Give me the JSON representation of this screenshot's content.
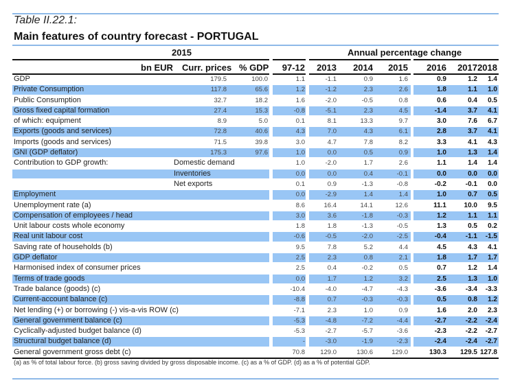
{
  "table_number": "Table II.22.1:",
  "title": "Main features of country forecast - PORTUGAL",
  "header": {
    "group_2015": "2015",
    "group_annual": "Annual percentage change",
    "bn_eur": "bn EUR",
    "curr_prices": "Curr. prices",
    "pct_gdp": "% GDP",
    "years": [
      "97-12",
      "2013",
      "2014",
      "2015",
      "2016",
      "2017",
      "2018"
    ]
  },
  "colors": {
    "band": "#99c6f5",
    "rule_blue": "#8db9e8"
  },
  "rows": [
    {
      "label": "GDP",
      "sub": "",
      "curr": "179.5",
      "pct": "100.0",
      "v": [
        "1.1",
        "-1.1",
        "0.9",
        "1.6",
        "0.9",
        "1.2",
        "1.4"
      ],
      "band": false
    },
    {
      "label": "Private Consumption",
      "sub": "",
      "curr": "117.8",
      "pct": "65.6",
      "v": [
        "1.2",
        "-1.2",
        "2.3",
        "2.6",
        "1.8",
        "1.1",
        "1.0"
      ],
      "band": true
    },
    {
      "label": "Public Consumption",
      "sub": "",
      "curr": "32.7",
      "pct": "18.2",
      "v": [
        "1.6",
        "-2.0",
        "-0.5",
        "0.8",
        "0.6",
        "0.4",
        "0.5"
      ],
      "band": false
    },
    {
      "label": "Gross fixed capital formation",
      "sub": "",
      "curr": "27.4",
      "pct": "15.3",
      "v": [
        "-0.8",
        "-5.1",
        "2.3",
        "4.5",
        "-1.4",
        "3.7",
        "4.1"
      ],
      "band": true
    },
    {
      "label": "of which: equipment",
      "sub": "",
      "curr": "8.9",
      "pct": "5.0",
      "v": [
        "0.1",
        "8.1",
        "13.3",
        "9.7",
        "3.0",
        "7.6",
        "6.7"
      ],
      "band": false
    },
    {
      "label": "Exports (goods and services)",
      "sub": "",
      "curr": "72.8",
      "pct": "40.6",
      "v": [
        "4.3",
        "7.0",
        "4.3",
        "6.1",
        "2.8",
        "3.7",
        "4.1"
      ],
      "band": true
    },
    {
      "label": "Imports (goods and services)",
      "sub": "",
      "curr": "71.5",
      "pct": "39.8",
      "v": [
        "3.0",
        "4.7",
        "7.8",
        "8.2",
        "3.3",
        "4.1",
        "4.3"
      ],
      "band": false
    },
    {
      "label": "GNI (GDP deflator)",
      "sub": "",
      "curr": "175.3",
      "pct": "97.6",
      "v": [
        "1.0",
        "0.0",
        "0.5",
        "0.9",
        "1.0",
        "1.3",
        "1.4"
      ],
      "band": true
    },
    {
      "label": "Contribution to GDP growth:",
      "sub": "Domestic demand",
      "curr": "",
      "pct": "",
      "v": [
        "1.0",
        "-2.0",
        "1.7",
        "2.6",
        "1.1",
        "1.4",
        "1.4"
      ],
      "band": false
    },
    {
      "label": "",
      "sub": "Inventories",
      "curr": "",
      "pct": "",
      "v": [
        "0.0",
        "0.0",
        "0.4",
        "-0.1",
        "0.0",
        "0.0",
        "0.0"
      ],
      "band": true
    },
    {
      "label": "",
      "sub": "Net exports",
      "curr": "",
      "pct": "",
      "v": [
        "0.1",
        "0.9",
        "-1.3",
        "-0.8",
        "-0.2",
        "-0.1",
        "0.0"
      ],
      "band": false
    },
    {
      "label": "Employment",
      "sub": "",
      "curr": "",
      "pct": "",
      "v": [
        "0.0",
        "-2.9",
        "1.4",
        "1.4",
        "1.0",
        "0.7",
        "0.5"
      ],
      "band": true
    },
    {
      "label": "Unemployment rate (a)",
      "sub": "",
      "curr": "",
      "pct": "",
      "v": [
        "8.6",
        "16.4",
        "14.1",
        "12.6",
        "11.1",
        "10.0",
        "9.5"
      ],
      "band": false
    },
    {
      "label": "Compensation of employees / head",
      "sub": "",
      "curr": "",
      "pct": "",
      "v": [
        "3.0",
        "3.6",
        "-1.8",
        "-0.3",
        "1.2",
        "1.1",
        "1.1"
      ],
      "band": true
    },
    {
      "label": "Unit labour costs whole economy",
      "sub": "",
      "curr": "",
      "pct": "",
      "v": [
        "1.8",
        "1.8",
        "-1.3",
        "-0.5",
        "1.3",
        "0.5",
        "0.2"
      ],
      "band": false
    },
    {
      "label": "Real unit labour cost",
      "sub": "",
      "curr": "",
      "pct": "",
      "v": [
        "-0.6",
        "-0.5",
        "-2.0",
        "-2.5",
        "-0.4",
        "-1.1",
        "-1.5"
      ],
      "band": true
    },
    {
      "label": "Saving rate of households (b)",
      "sub": "",
      "curr": "",
      "pct": "",
      "v": [
        "9.5",
        "7.8",
        "5.2",
        "4.4",
        "4.5",
        "4.3",
        "4.1"
      ],
      "band": false
    },
    {
      "label": "GDP deflator",
      "sub": "",
      "curr": "",
      "pct": "",
      "v": [
        "2.5",
        "2.3",
        "0.8",
        "2.1",
        "1.8",
        "1.7",
        "1.7"
      ],
      "band": true
    },
    {
      "label": "Harmonised index of consumer prices",
      "sub": "",
      "curr": "",
      "pct": "",
      "v": [
        "2.5",
        "0.4",
        "-0.2",
        "0.5",
        "0.7",
        "1.2",
        "1.4"
      ],
      "band": false
    },
    {
      "label": "Terms of trade goods",
      "sub": "",
      "curr": "",
      "pct": "",
      "v": [
        "0.0",
        "1.7",
        "1.2",
        "3.2",
        "2.5",
        "1.3",
        "1.0"
      ],
      "band": true
    },
    {
      "label": "Trade balance (goods) (c)",
      "sub": "",
      "curr": "",
      "pct": "",
      "v": [
        "-10.4",
        "-4.0",
        "-4.7",
        "-4.3",
        "-3.6",
        "-3.4",
        "-3.3"
      ],
      "band": false
    },
    {
      "label": "Current-account balance (c)",
      "sub": "",
      "curr": "",
      "pct": "",
      "v": [
        "-8.8",
        "0.7",
        "-0.3",
        "-0.3",
        "0.5",
        "0.8",
        "1.2"
      ],
      "band": true
    },
    {
      "label": "Net lending (+) or borrowing (-) vis-a-vis ROW (c)",
      "sub": "",
      "curr": "",
      "pct": "",
      "v": [
        "-7.1",
        "2.3",
        "1.0",
        "0.9",
        "1.6",
        "2.0",
        "2.3"
      ],
      "band": false
    },
    {
      "label": "General government balance (c)",
      "sub": "",
      "curr": "",
      "pct": "",
      "v": [
        "-5.3",
        "-4.8",
        "-7.2",
        "-4.4",
        "-2.7",
        "-2.2",
        "-2.4"
      ],
      "band": true
    },
    {
      "label": "Cyclically-adjusted budget balance (d)",
      "sub": "",
      "curr": "",
      "pct": "",
      "v": [
        "-5.3",
        "-2.7",
        "-5.7",
        "-3.6",
        "-2.3",
        "-2.2",
        "-2.7"
      ],
      "band": false
    },
    {
      "label": "Structural budget balance (d)",
      "sub": "",
      "curr": "",
      "pct": "",
      "v": [
        "-",
        "-3.0",
        "-1.9",
        "-2.3",
        "-2.4",
        "-2.4",
        "-2.7"
      ],
      "band": true
    },
    {
      "label": "General government gross debt (c)",
      "sub": "",
      "curr": "",
      "pct": "",
      "v": [
        "70.8",
        "129.0",
        "130.6",
        "129.0",
        "130.3",
        "129.5",
        "127.8"
      ],
      "band": false
    }
  ],
  "footnote": "(a) as % of total labour force. (b) gross saving divided by gross disposable income.  (c) as a % of  GDP. (d) as a % of  potential GDP."
}
